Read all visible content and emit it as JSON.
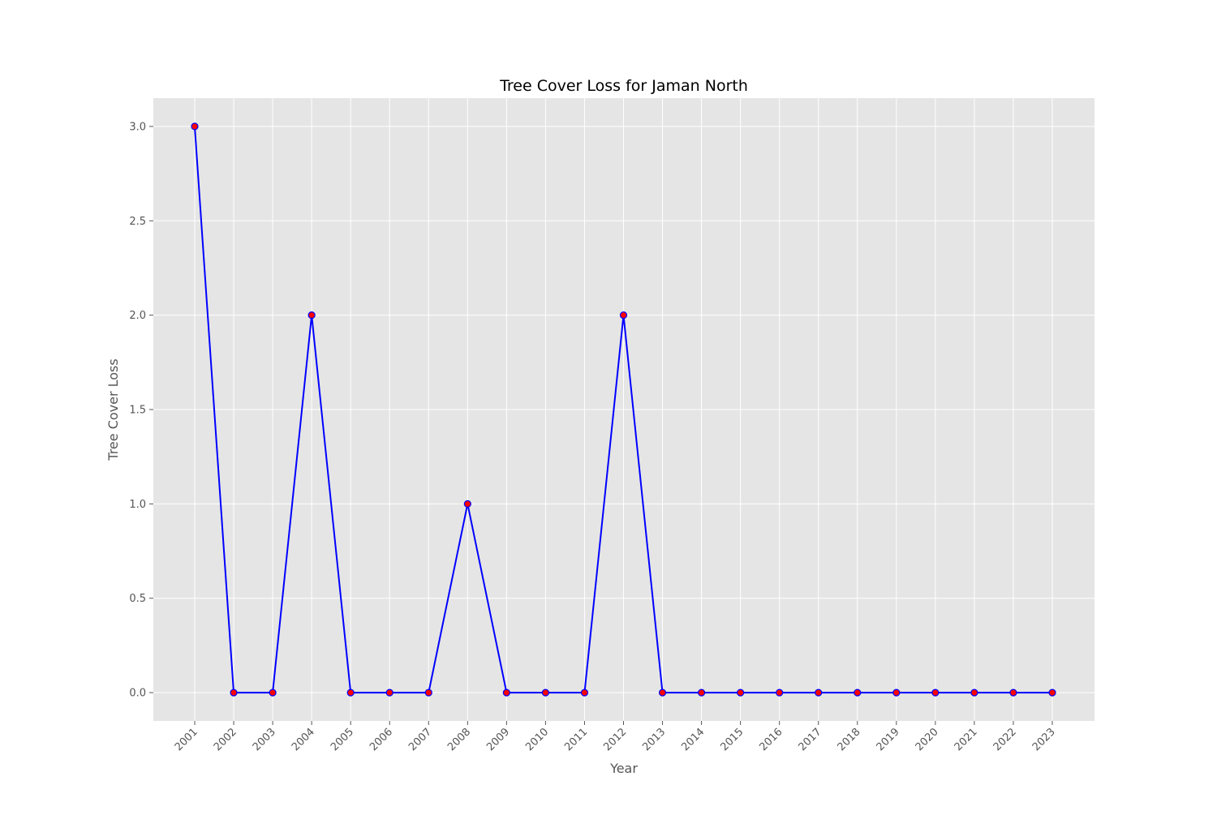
{
  "chart_data": {
    "type": "line",
    "title": "Tree Cover Loss for Jaman North",
    "xlabel": "Year",
    "ylabel": "Tree Cover Loss",
    "x": [
      "2001",
      "2002",
      "2003",
      "2004",
      "2005",
      "2006",
      "2007",
      "2008",
      "2009",
      "2010",
      "2011",
      "2012",
      "2013",
      "2014",
      "2015",
      "2016",
      "2017",
      "2018",
      "2019",
      "2020",
      "2021",
      "2022",
      "2023"
    ],
    "series": [
      {
        "values": [
          3,
          0,
          0,
          2,
          0,
          0,
          0,
          1,
          0,
          0,
          0,
          2,
          0,
          0,
          0,
          0,
          0,
          0,
          0,
          0,
          0,
          0,
          0
        ],
        "line_color": "#0000ff",
        "marker_color": "#ff0000",
        "marker_edge_color": "#0000ff"
      }
    ],
    "ylim": [
      -0.15,
      3.15
    ],
    "yticks": [
      "0.0",
      "0.5",
      "1.0",
      "1.5",
      "2.0",
      "2.5",
      "3.0"
    ],
    "ytick_values": [
      0,
      0.5,
      1,
      1.5,
      2,
      2.5,
      3
    ],
    "grid": true,
    "style": "ggplot",
    "plot_background": "#e5e5e5",
    "grid_color": "#ffffff"
  }
}
